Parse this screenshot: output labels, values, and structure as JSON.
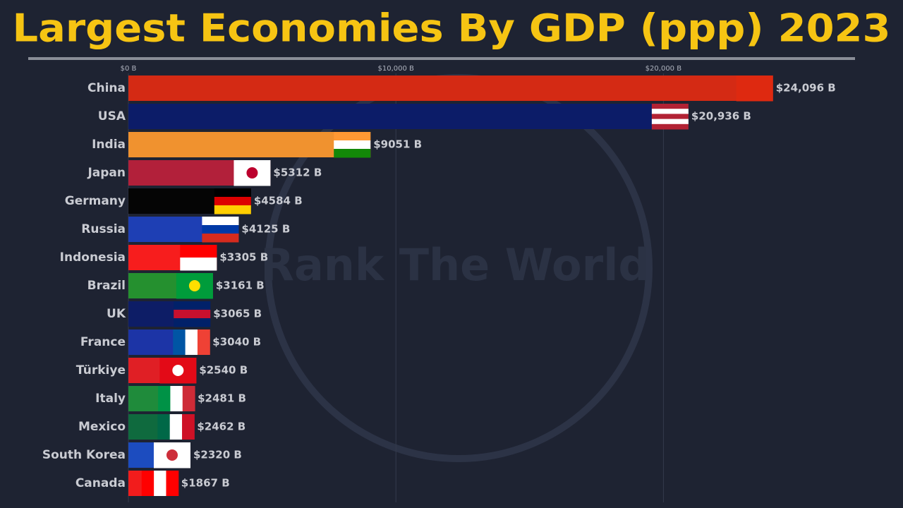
{
  "chart_data": {
    "type": "bar",
    "orientation": "horizontal",
    "title": "Largest Economies By GDP (ppp) 2023",
    "watermark": "Rank The World",
    "categories": [
      "China",
      "USA",
      "India",
      "Japan",
      "Germany",
      "Russia",
      "Indonesia",
      "Brazil",
      "UK",
      "France",
      "Türkiye",
      "Italy",
      "Mexico",
      "South Korea",
      "Canada"
    ],
    "values": [
      24096,
      20936,
      9051,
      5312,
      4584,
      4125,
      3305,
      3161,
      3065,
      3040,
      2540,
      2481,
      2462,
      2320,
      1867
    ],
    "value_labels": [
      "$24,096 B",
      "$20,936 B",
      "$9051 B",
      "$5312 B",
      "$4584 B",
      "$4125 B",
      "$3305 B",
      "$3161 B",
      "$3065 B",
      "$3040 B",
      "$2540 B",
      "$2481 B",
      "$2462 B",
      "$2320 B",
      "$1867 B"
    ],
    "colors": [
      "#d42a14",
      "#0c1c68",
      "#f0922f",
      "#b2203a",
      "#050505",
      "#1e3fb4",
      "#f71d1d",
      "#25902f",
      "#0d1d66",
      "#1c34a6",
      "#e01f25",
      "#1f8b3b",
      "#0f6a3e",
      "#1c4cbf",
      "#f21c1c"
    ],
    "xlim": [
      0,
      25000
    ],
    "xticks": [
      {
        "value": 0,
        "label": "$0 B"
      },
      {
        "value": 10000,
        "label": "$10,000 B"
      },
      {
        "value": 20000,
        "label": "$20,000 B"
      }
    ],
    "grid": true
  }
}
